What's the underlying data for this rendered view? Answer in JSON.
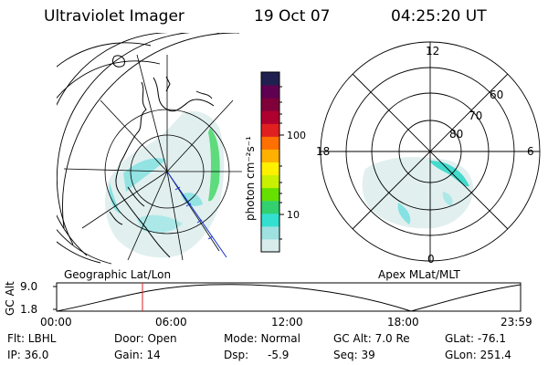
{
  "header": {
    "instrument": "Ultraviolet Imager",
    "date": "19 Oct 07",
    "time": "04:25:20 UT"
  },
  "colorbar": {
    "unit_label": "photon cm⁻²s⁻¹",
    "ticks": [
      "100",
      "10"
    ],
    "colors": [
      "#d8ecec",
      "#9fe0e0",
      "#33e0d0",
      "#33d070",
      "#66e000",
      "#c8f000",
      "#fff000",
      "#ffb000",
      "#ff7000",
      "#e02020",
      "#b00030",
      "#80003a",
      "#600050",
      "#202050"
    ]
  },
  "left_map": {
    "caption": "Geographic Lat/Lon"
  },
  "right_map": {
    "caption": "Apex MLat/MLT",
    "hour_labels": {
      "top": "12",
      "left": "18",
      "right": "6",
      "bottom": "0"
    },
    "lat_labels": [
      "60",
      "70",
      "80"
    ]
  },
  "altitude_plot": {
    "axis_label": "GC Alt",
    "y_ticks": [
      "9.0",
      "1.8"
    ],
    "x_ticks": [
      "00:00",
      "06:00",
      "12:00",
      "18:00",
      "23:59"
    ],
    "marker_time_fraction": 0.185
  },
  "status": {
    "flt": "Flt: LBHL",
    "ip": "IP: 36.0",
    "door": "Door: Open",
    "gain": "Gain: 14",
    "mode": "Mode: Normal",
    "dsp_label": "Dsp:",
    "dsp_value": "-5.9",
    "gc_alt": "GC Alt: 7.0 Re",
    "seq": "Seq: 39",
    "glat": "GLat: -76.1",
    "glon": "GLon: 251.4"
  }
}
